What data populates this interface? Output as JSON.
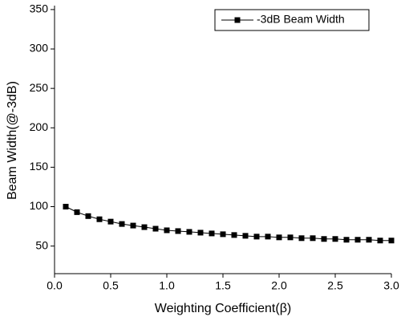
{
  "chart_data": {
    "type": "line",
    "xlabel": "Weighting Coefficient(β)",
    "ylabel": "Beam Width(@-3dB)",
    "x": [
      0.1,
      0.2,
      0.3,
      0.4,
      0.5,
      0.6,
      0.7,
      0.8,
      0.9,
      1.0,
      1.1,
      1.2,
      1.3,
      1.4,
      1.5,
      1.6,
      1.7,
      1.8,
      1.9,
      2.0,
      2.1,
      2.2,
      2.3,
      2.4,
      2.5,
      2.6,
      2.7,
      2.8,
      2.9,
      3.0
    ],
    "series": [
      {
        "name": "-3dB Beam Width",
        "color": "#000000",
        "values": [
          100,
          93,
          88,
          84,
          81,
          78,
          76,
          74,
          72,
          70,
          69,
          68,
          67,
          66,
          65,
          64,
          63,
          62,
          62,
          61,
          61,
          60,
          60,
          59,
          59,
          58,
          58,
          58,
          57,
          57
        ]
      }
    ],
    "xlim": [
      0,
      3.0
    ],
    "xticks": [
      {
        "value": 0,
        "label": "0.0"
      },
      0.5,
      {
        "value": 1,
        "label": "1.0"
      },
      1.5,
      {
        "value": 2,
        "label": "2.0"
      },
      2.5,
      {
        "value": 3,
        "label": "3.0"
      }
    ],
    "ylim": [
      15,
      355
    ],
    "yticks": [
      50,
      100,
      150,
      200,
      250,
      300,
      350
    ],
    "grid": false,
    "legend": "upper right"
  }
}
